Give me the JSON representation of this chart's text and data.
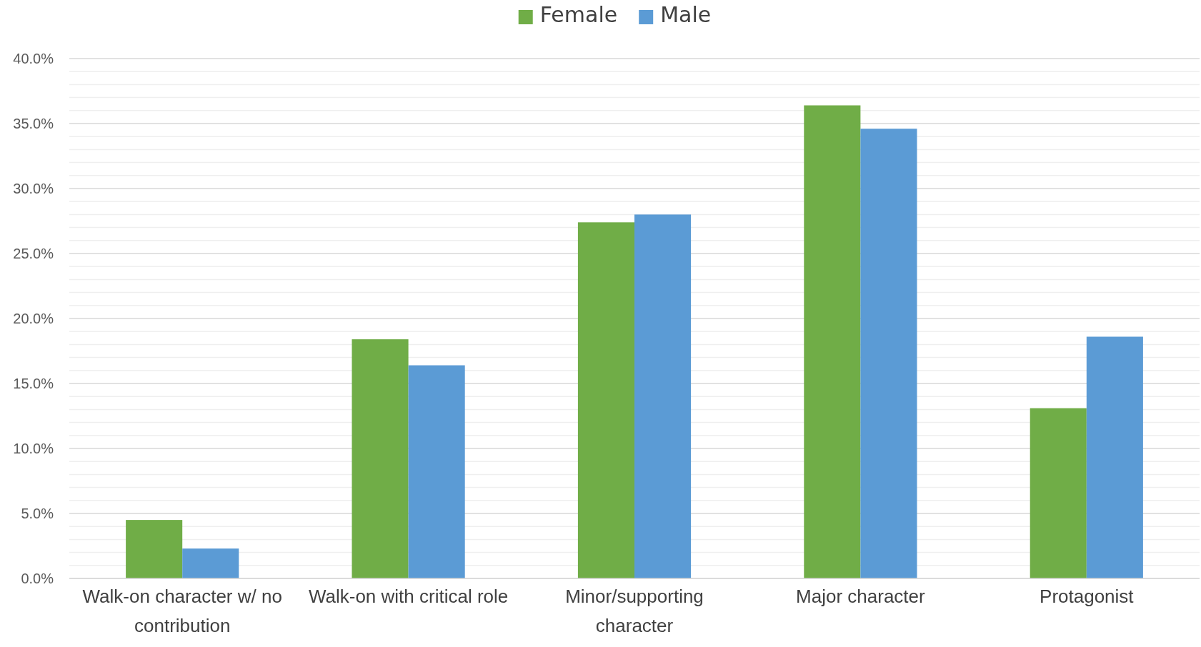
{
  "chart_data": {
    "type": "bar",
    "categories": [
      "Walk-on character w/ no contribution",
      "Walk-on with critical role",
      "Minor/supporting character",
      "Major character",
      "Protagonist"
    ],
    "series": [
      {
        "name": "Female",
        "color": "#70ad47",
        "values": [
          4.5,
          18.4,
          27.4,
          36.4,
          13.1
        ]
      },
      {
        "name": "Male",
        "color": "#5b9bd5",
        "values": [
          2.3,
          16.4,
          28.0,
          34.6,
          18.6
        ]
      }
    ],
    "ylim": [
      0,
      40
    ],
    "yticks": [
      {
        "value": 0,
        "label": "0.0%"
      },
      {
        "value": 5,
        "label": "5.0%"
      },
      {
        "value": 10,
        "label": "10.0%"
      },
      {
        "value": 15,
        "label": "15.0%"
      },
      {
        "value": 20,
        "label": "20.0%"
      },
      {
        "value": 25,
        "label": "25.0%"
      },
      {
        "value": 30,
        "label": "30.0%"
      },
      {
        "value": 35,
        "label": "35.0%"
      },
      {
        "value": 40,
        "label": "40.0%"
      }
    ],
    "grid": "y",
    "legend": "top"
  }
}
